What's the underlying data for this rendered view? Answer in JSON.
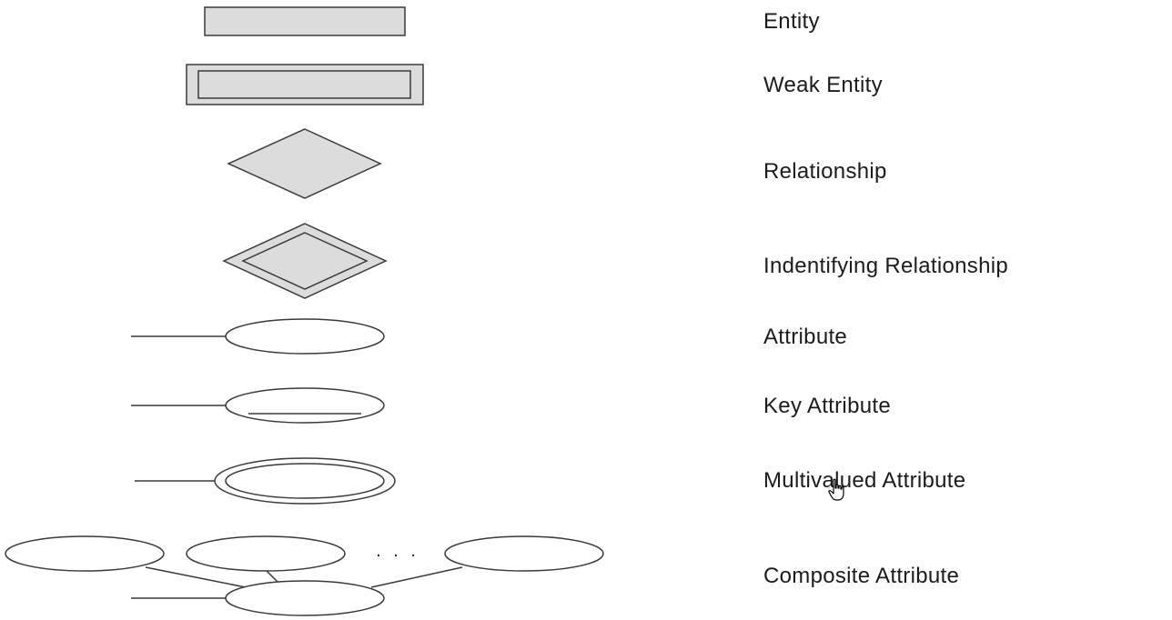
{
  "legend": {
    "items": [
      {
        "id": "entity",
        "label": "Entity"
      },
      {
        "id": "weak-entity",
        "label": "Weak Entity"
      },
      {
        "id": "relationship",
        "label": "Relationship"
      },
      {
        "id": "identifying-relationship",
        "label": "Indentifying Relationship"
      },
      {
        "id": "attribute",
        "label": "Attribute"
      },
      {
        "id": "key-attribute",
        "label": "Key Attribute"
      },
      {
        "id": "multivalued-attribute",
        "label": "Multivalued Attribute"
      },
      {
        "id": "composite-attribute",
        "label": "Composite Attribute"
      }
    ],
    "composite_ellipsis": ". . ."
  },
  "colors": {
    "stroke": "#3a3a3a",
    "entity_fill": "#dcdcdc",
    "attribute_fill": "#ffffff",
    "text": "#1c1c1c"
  },
  "cursor_icon": "hand-pointer-icon"
}
